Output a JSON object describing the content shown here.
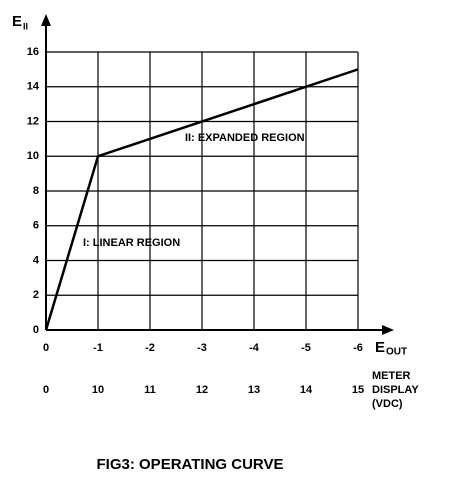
{
  "chart_data": {
    "type": "line",
    "title": "FIG3:  OPERATING  CURVE",
    "ylabel": {
      "main": "E",
      "sub": "II"
    },
    "xlabel": {
      "main": "E",
      "sub": "OUT"
    },
    "x2label": [
      "METER",
      "DISPLAY",
      "(VDC)"
    ],
    "annotations": [
      "I: LINEAR REGION",
      "II: EXPANDED REGION"
    ],
    "x": [
      0,
      -1,
      -6
    ],
    "series": [
      {
        "values": [
          0,
          10,
          15
        ],
        "color": "#000000"
      }
    ],
    "xlim": [
      0,
      -6
    ],
    "xticks": [
      0,
      -1,
      -2,
      -3,
      -4,
      -5,
      -6
    ],
    "x2ticks": [
      0,
      10,
      11,
      12,
      13,
      14,
      15
    ],
    "ylim": [
      0,
      16
    ],
    "yticks": [
      0,
      2,
      4,
      6,
      8,
      10,
      12,
      14,
      16
    ],
    "grid": true
  }
}
